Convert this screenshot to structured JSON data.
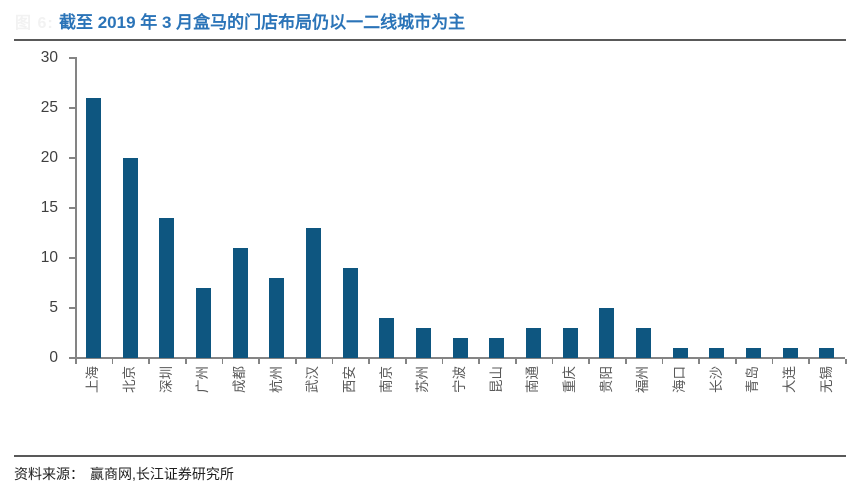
{
  "figure": {
    "faint_prefix": "图 6:",
    "title": "截至 2019 年 3 月盒马的门店布局仍以一二线城市为主",
    "source_label": "资料来源：",
    "source_text": "赢商网,长江证券研究所"
  },
  "colors": {
    "bar": "#0E5680",
    "title": "#2B74B8",
    "axis": "#848484",
    "tickLabel": "#3F3F3F",
    "cityLabel": "#595959",
    "rule": "#595959",
    "footer": "#1F1F1F"
  },
  "chart_data": {
    "type": "bar",
    "title": "截至 2019 年 3 月盒马的门店布局仍以一二线城市为主",
    "categories": [
      "上海",
      "北京",
      "深圳",
      "广州",
      "成都",
      "杭州",
      "武汉",
      "西安",
      "南京",
      "苏州",
      "宁波",
      "昆山",
      "南通",
      "重庆",
      "贵阳",
      "福州",
      "海口",
      "长沙",
      "青岛",
      "大连",
      "无锡"
    ],
    "values": [
      26,
      20,
      14,
      7,
      11,
      8,
      13,
      9,
      4,
      3,
      2,
      2,
      3,
      3,
      5,
      3,
      1,
      1,
      1,
      1,
      1
    ],
    "xlabel": "",
    "ylabel": "",
    "ylim": [
      0,
      30
    ],
    "yticks": [
      0,
      5,
      10,
      15,
      20,
      25,
      30
    ],
    "grid": false,
    "legend_position": "none",
    "bar_color": "#0E5680"
  }
}
